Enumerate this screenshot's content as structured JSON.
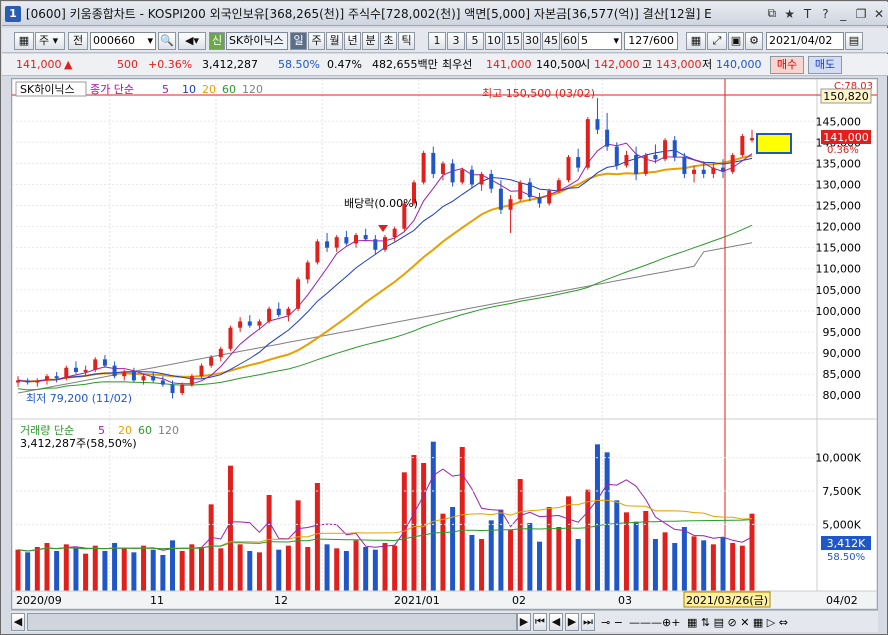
{
  "window": {
    "number": "1",
    "title": "[0600] 키움종합차트 - KOSPI200 외국인보유[368,265(천)] 주식수[728,002(천)] 액면[5,000] 자본금[36,577(억)] 결산[12월] E",
    "icons": [
      "link-icon",
      "star-icon",
      "T",
      "?",
      "minimize",
      "restore",
      "close"
    ]
  },
  "toolbar": {
    "period_label": "주",
    "prev_label": "전",
    "code": "000660",
    "stock_name": "SK하이닉스",
    "periods": [
      "일",
      "주",
      "월",
      "년",
      "분",
      "초",
      "틱"
    ],
    "minutes": [
      "1",
      "3",
      "5",
      "10",
      "15",
      "30",
      "45",
      "60"
    ],
    "count": "5",
    "page": "127/600",
    "date": "2021/04/02"
  },
  "quote": {
    "price": "141,000",
    "change": "500",
    "change_pct": "+0.36%",
    "volume": "3,412,287",
    "volume_ratio": "58.50%",
    "turnover": "0.47%",
    "amount": "482,655백만",
    "best_ask_label": "최우선",
    "best_ask": "141,000",
    "best_bid": "140,500",
    "open_label": "시",
    "open": "142,000",
    "high_label": "고",
    "high": "143,000",
    "low_label": "저",
    "low": "140,000",
    "buy_label": "매수",
    "sell_label": "매도"
  },
  "price_panel": {
    "stock_name": "SK하이닉스",
    "ma_label": "종가 단순",
    "ma_periods": [
      "5",
      "10",
      "20",
      "60",
      "120"
    ],
    "high_marker": "최고 150,500 (03/02)",
    "low_marker": "최저 79,200 (11/02)",
    "dividend_marker": "배당락(0.00%)",
    "current_price": "141,000",
    "current_pct": "0.36%",
    "top_price_label": "150,820",
    "top_right_label": "C:78.03",
    "y_ticks": [
      "145,000",
      "140,000",
      "135,000",
      "130,000",
      "125,000",
      "120,000",
      "115,000",
      "110,000",
      "105,000",
      "100,000",
      "95,000",
      "90,000",
      "85,000",
      "80,000"
    ]
  },
  "volume_panel": {
    "label": "거래량 단순",
    "ma_periods": [
      "5",
      "20",
      "60",
      "120"
    ],
    "summary": "3,412,287주(58,50%)",
    "current": "3,412K",
    "current_pct": "58.50%",
    "y_ticks": [
      "10,000K",
      "7,500K",
      "5,000K"
    ]
  },
  "x_axis": {
    "labels": [
      "2020/09",
      "11",
      "12",
      "2021/01",
      "02",
      "03",
      "04/02"
    ],
    "cursor_date": "2021/03/26(금)"
  },
  "colors": {
    "up": "#e0201c",
    "down": "#1f57c8",
    "ma5": "#9b1fb0",
    "ma10": "#1a3cc8",
    "ma20": "#e8a000",
    "ma60": "#2a9a2a",
    "ma120": "#808080"
  },
  "chart_data": {
    "type": "candlestick",
    "x_range": [
      "2020/09",
      "2021/04/02"
    ],
    "ylim": [
      76000,
      151000
    ],
    "price_markers": {
      "high": 150500,
      "high_date": "03/02",
      "low": 79200,
      "low_date": "11/02"
    },
    "ohlc_approx": [
      [
        83000,
        84500,
        82000,
        83500
      ],
      [
        83500,
        84000,
        82500,
        83000
      ],
      [
        83000,
        84000,
        82000,
        83500
      ],
      [
        83500,
        85000,
        82500,
        84500
      ],
      [
        84500,
        85500,
        83000,
        84000
      ],
      [
        84000,
        87000,
        83500,
        86500
      ],
      [
        86500,
        88000,
        85000,
        85500
      ],
      [
        85500,
        87000,
        84500,
        86000
      ],
      [
        86000,
        89000,
        85500,
        88500
      ],
      [
        88500,
        89500,
        86500,
        87000
      ],
      [
        87000,
        88000,
        84000,
        84500
      ],
      [
        84500,
        86000,
        83500,
        85500
      ],
      [
        85500,
        86500,
        83000,
        83500
      ],
      [
        83500,
        85000,
        82500,
        84500
      ],
      [
        84500,
        85500,
        83000,
        83500
      ],
      [
        83500,
        84500,
        82000,
        82500
      ],
      [
        82500,
        83500,
        79200,
        80500
      ],
      [
        80500,
        83000,
        80000,
        82500
      ],
      [
        82500,
        85000,
        82000,
        84500
      ],
      [
        84500,
        87500,
        84000,
        87000
      ],
      [
        87000,
        89500,
        86500,
        89000
      ],
      [
        89000,
        91500,
        88000,
        91000
      ],
      [
        91000,
        96500,
        90500,
        96000
      ],
      [
        96000,
        98500,
        95000,
        97500
      ],
      [
        97500,
        99000,
        96000,
        96500
      ],
      [
        96500,
        98000,
        95500,
        97500
      ],
      [
        97500,
        101000,
        97000,
        100500
      ],
      [
        100500,
        102000,
        98500,
        99000
      ],
      [
        99000,
        101000,
        97500,
        100500
      ],
      [
        100500,
        108000,
        100000,
        107500
      ],
      [
        107500,
        112000,
        106500,
        111500
      ],
      [
        111500,
        117000,
        111000,
        116500
      ],
      [
        116500,
        118500,
        114000,
        115000
      ],
      [
        115000,
        118000,
        114000,
        117500
      ],
      [
        117500,
        119000,
        115500,
        116000
      ],
      [
        116000,
        118500,
        115000,
        118000
      ],
      [
        118000,
        119500,
        116500,
        117000
      ],
      [
        117000,
        118000,
        113500,
        114500
      ],
      [
        114500,
        118000,
        114000,
        117500
      ],
      [
        117500,
        120000,
        116500,
        119500
      ],
      [
        119500,
        126000,
        119000,
        125500
      ],
      [
        125500,
        131000,
        125000,
        130500
      ],
      [
        130500,
        138000,
        130000,
        137500
      ],
      [
        137500,
        139000,
        131500,
        132500
      ],
      [
        132500,
        135500,
        131000,
        135000
      ],
      [
        135000,
        136000,
        129500,
        130500
      ],
      [
        130500,
        134000,
        130000,
        133500
      ],
      [
        133500,
        134500,
        129000,
        130000
      ],
      [
        130000,
        133000,
        128500,
        132500
      ],
      [
        132500,
        133500,
        128000,
        129000
      ],
      [
        129000,
        131000,
        123000,
        124000
      ],
      [
        124000,
        127500,
        118500,
        126500
      ],
      [
        126500,
        131000,
        126000,
        130500
      ],
      [
        130500,
        131500,
        126000,
        127000
      ],
      [
        127000,
        128000,
        124500,
        125500
      ],
      [
        125500,
        129000,
        125000,
        128500
      ],
      [
        128500,
        131500,
        128000,
        131000
      ],
      [
        131000,
        137000,
        130500,
        136500
      ],
      [
        136500,
        138500,
        133000,
        134000
      ],
      [
        134000,
        146000,
        133500,
        145500
      ],
      [
        145500,
        150500,
        142000,
        143000
      ],
      [
        143000,
        147000,
        138000,
        139000
      ],
      [
        139000,
        140000,
        133500,
        134500
      ],
      [
        134500,
        138000,
        134000,
        137000
      ],
      [
        137000,
        139000,
        131000,
        132500
      ],
      [
        132500,
        137500,
        132000,
        137000
      ],
      [
        137000,
        139500,
        135000,
        136000
      ],
      [
        136000,
        141000,
        135500,
        140500
      ],
      [
        140500,
        141500,
        135500,
        136500
      ],
      [
        136500,
        137500,
        131500,
        132500
      ],
      [
        132500,
        134500,
        130500,
        133500
      ],
      [
        133500,
        135500,
        131500,
        132500
      ],
      [
        132500,
        135000,
        131500,
        134000
      ],
      [
        134000,
        136000,
        131500,
        133000
      ],
      [
        133000,
        137500,
        132500,
        137000
      ],
      [
        137000,
        142000,
        136500,
        141500
      ],
      [
        140500,
        143000,
        140000,
        141000
      ]
    ]
  }
}
